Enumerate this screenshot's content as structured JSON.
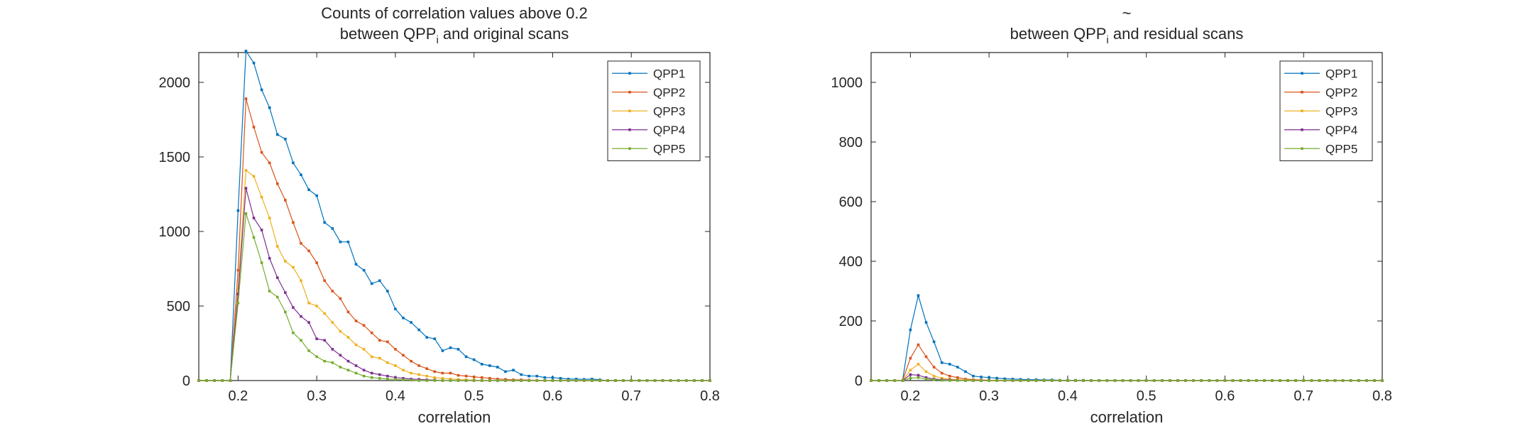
{
  "colors": {
    "QPP1": "#0072bd",
    "QPP2": "#d95319",
    "QPP3": "#edb120",
    "QPP4": "#7e2f8e",
    "QPP5": "#77ac30",
    "axis": "#262626",
    "legend_border": "#262626"
  },
  "chart_data": [
    {
      "type": "line",
      "title_line1": "Counts of correlation values above 0.2",
      "title_line2_pre": "between QPP",
      "title_line2_sub": "i",
      "title_line2_post": " and original scans",
      "xlabel": "correlation",
      "ylabel": "",
      "xlim": [
        0.15,
        0.8
      ],
      "ylim": [
        0,
        2200
      ],
      "xticks": [
        0.2,
        0.3,
        0.4,
        0.5,
        0.6,
        0.7,
        0.8
      ],
      "xtick_labels": [
        "0.2",
        "0.3",
        "0.4",
        "0.5",
        "0.6",
        "0.7",
        "0.8"
      ],
      "yticks": [
        0,
        500,
        1000,
        1500,
        2000
      ],
      "ytick_labels": [
        "0",
        "500",
        "1000",
        "1500",
        "2000"
      ],
      "grid": false,
      "legend_position": "top-right",
      "x": [
        0.15,
        0.16,
        0.17,
        0.18,
        0.19,
        0.2,
        0.21,
        0.22,
        0.23,
        0.24,
        0.25,
        0.26,
        0.27,
        0.28,
        0.29,
        0.3,
        0.31,
        0.32,
        0.33,
        0.34,
        0.35,
        0.36,
        0.37,
        0.38,
        0.39,
        0.4,
        0.41,
        0.42,
        0.43,
        0.44,
        0.45,
        0.46,
        0.47,
        0.48,
        0.49,
        0.5,
        0.51,
        0.52,
        0.53,
        0.54,
        0.55,
        0.56,
        0.57,
        0.58,
        0.59,
        0.6,
        0.61,
        0.62,
        0.63,
        0.64,
        0.65,
        0.66,
        0.67,
        0.68,
        0.69,
        0.7,
        0.71,
        0.72,
        0.73,
        0.74,
        0.75,
        0.76,
        0.77,
        0.78,
        0.79,
        0.8
      ],
      "series": [
        {
          "name": "QPP1",
          "values": [
            0,
            0,
            0,
            0,
            0,
            1140,
            2210,
            2130,
            1950,
            1830,
            1650,
            1620,
            1460,
            1380,
            1280,
            1240,
            1060,
            1020,
            930,
            930,
            780,
            740,
            650,
            670,
            600,
            480,
            420,
            390,
            340,
            290,
            280,
            200,
            220,
            210,
            160,
            140,
            110,
            100,
            90,
            60,
            70,
            40,
            30,
            30,
            20,
            20,
            15,
            10,
            10,
            8,
            10,
            5,
            0,
            0,
            0,
            0,
            0,
            0,
            0,
            0,
            0,
            0,
            0,
            0,
            0,
            0
          ]
        },
        {
          "name": "QPP2",
          "values": [
            0,
            0,
            0,
            0,
            0,
            740,
            1890,
            1700,
            1530,
            1460,
            1320,
            1210,
            1060,
            920,
            870,
            790,
            670,
            600,
            550,
            460,
            400,
            370,
            320,
            270,
            260,
            210,
            170,
            130,
            100,
            80,
            60,
            50,
            50,
            35,
            30,
            25,
            20,
            15,
            10,
            8,
            5,
            5,
            3,
            2,
            0,
            0,
            0,
            0,
            0,
            0,
            0,
            0,
            0,
            0,
            0,
            0,
            0,
            0,
            0,
            0,
            0,
            0,
            0,
            0,
            0,
            0
          ]
        },
        {
          "name": "QPP3",
          "values": [
            0,
            0,
            0,
            0,
            0,
            620,
            1410,
            1370,
            1230,
            1090,
            900,
            800,
            760,
            670,
            520,
            500,
            450,
            390,
            330,
            290,
            240,
            210,
            160,
            150,
            120,
            100,
            70,
            50,
            40,
            30,
            20,
            15,
            10,
            8,
            5,
            3,
            0,
            0,
            0,
            0,
            0,
            0,
            0,
            0,
            0,
            0,
            0,
            0,
            0,
            0,
            0,
            0,
            0,
            0,
            0,
            0,
            0,
            0,
            0,
            0,
            0,
            0,
            0,
            0,
            0,
            0
          ]
        },
        {
          "name": "QPP4",
          "values": [
            0,
            0,
            0,
            0,
            0,
            580,
            1290,
            1090,
            1010,
            820,
            690,
            590,
            490,
            430,
            390,
            280,
            270,
            210,
            170,
            130,
            100,
            70,
            50,
            40,
            30,
            20,
            15,
            10,
            8,
            5,
            3,
            0,
            0,
            0,
            0,
            0,
            0,
            0,
            0,
            0,
            0,
            0,
            0,
            0,
            0,
            0,
            0,
            0,
            0,
            0,
            0,
            0,
            0,
            0,
            0,
            0,
            0,
            0,
            0,
            0,
            0,
            0,
            0,
            0,
            0,
            0
          ]
        },
        {
          "name": "QPP5",
          "values": [
            0,
            0,
            0,
            0,
            0,
            520,
            1120,
            960,
            790,
            600,
            560,
            460,
            320,
            270,
            200,
            160,
            130,
            120,
            90,
            70,
            50,
            30,
            20,
            15,
            10,
            8,
            5,
            3,
            0,
            0,
            0,
            0,
            0,
            0,
            0,
            0,
            0,
            0,
            0,
            0,
            0,
            0,
            0,
            0,
            0,
            0,
            0,
            0,
            0,
            0,
            0,
            0,
            0,
            0,
            0,
            0,
            0,
            0,
            0,
            0,
            0,
            0,
            0,
            0,
            0,
            0
          ]
        }
      ]
    },
    {
      "type": "line",
      "title_line1": "~",
      "title_line2_pre": "between QPP",
      "title_line2_sub": "i",
      "title_line2_post": " and residual scans",
      "xlabel": "correlation",
      "ylabel": "",
      "xlim": [
        0.15,
        0.8
      ],
      "ylim": [
        0,
        1100
      ],
      "xticks": [
        0.2,
        0.3,
        0.4,
        0.5,
        0.6,
        0.7,
        0.8
      ],
      "xtick_labels": [
        "0.2",
        "0.3",
        "0.4",
        "0.5",
        "0.6",
        "0.7",
        "0.8"
      ],
      "yticks": [
        0,
        200,
        400,
        600,
        800,
        1000
      ],
      "ytick_labels": [
        "0",
        "200",
        "400",
        "600",
        "800",
        "1000"
      ],
      "grid": false,
      "legend_position": "top-right",
      "x": [
        0.15,
        0.16,
        0.17,
        0.18,
        0.19,
        0.2,
        0.21,
        0.22,
        0.23,
        0.24,
        0.25,
        0.26,
        0.27,
        0.28,
        0.29,
        0.3,
        0.31,
        0.32,
        0.33,
        0.34,
        0.35,
        0.36,
        0.37,
        0.38,
        0.39,
        0.4,
        0.41,
        0.42,
        0.43,
        0.44,
        0.45,
        0.46,
        0.47,
        0.48,
        0.49,
        0.5,
        0.51,
        0.52,
        0.53,
        0.54,
        0.55,
        0.56,
        0.57,
        0.58,
        0.59,
        0.6,
        0.61,
        0.62,
        0.63,
        0.64,
        0.65,
        0.66,
        0.67,
        0.68,
        0.69,
        0.7,
        0.71,
        0.72,
        0.73,
        0.74,
        0.75,
        0.76,
        0.77,
        0.78,
        0.79,
        0.8
      ],
      "series": [
        {
          "name": "QPP1",
          "values": [
            0,
            0,
            0,
            0,
            0,
            170,
            285,
            195,
            130,
            60,
            55,
            45,
            30,
            15,
            12,
            10,
            8,
            6,
            5,
            4,
            3,
            3,
            2,
            2,
            1,
            1,
            1,
            1,
            0,
            0,
            0,
            0,
            0,
            0,
            0,
            0,
            0,
            0,
            0,
            0,
            0,
            0,
            0,
            0,
            0,
            0,
            0,
            0,
            0,
            0,
            0,
            0,
            0,
            0,
            0,
            0,
            0,
            0,
            0,
            0,
            0,
            0,
            0,
            0,
            0,
            0
          ]
        },
        {
          "name": "QPP2",
          "values": [
            0,
            0,
            0,
            0,
            0,
            75,
            120,
            80,
            45,
            25,
            15,
            10,
            5,
            3,
            2,
            1,
            1,
            0,
            0,
            0,
            0,
            0,
            0,
            0,
            0,
            0,
            0,
            0,
            0,
            0,
            0,
            0,
            0,
            0,
            0,
            0,
            0,
            0,
            0,
            0,
            0,
            0,
            0,
            0,
            0,
            0,
            0,
            0,
            0,
            0,
            0,
            0,
            0,
            0,
            0,
            0,
            0,
            0,
            0,
            0,
            0,
            0,
            0,
            0,
            0,
            0
          ]
        },
        {
          "name": "QPP3",
          "values": [
            0,
            0,
            0,
            0,
            0,
            35,
            55,
            30,
            15,
            8,
            5,
            3,
            2,
            1,
            0,
            0,
            0,
            0,
            0,
            0,
            0,
            0,
            0,
            0,
            0,
            0,
            0,
            0,
            0,
            0,
            0,
            0,
            0,
            0,
            0,
            0,
            0,
            0,
            0,
            0,
            0,
            0,
            0,
            0,
            0,
            0,
            0,
            0,
            0,
            0,
            0,
            0,
            0,
            0,
            0,
            0,
            0,
            0,
            0,
            0,
            0,
            0,
            0,
            0,
            0,
            0
          ]
        },
        {
          "name": "QPP4",
          "values": [
            0,
            0,
            0,
            0,
            0,
            20,
            18,
            10,
            5,
            3,
            2,
            1,
            0,
            0,
            0,
            0,
            0,
            0,
            0,
            0,
            0,
            0,
            0,
            0,
            0,
            0,
            0,
            0,
            0,
            0,
            0,
            0,
            0,
            0,
            0,
            0,
            0,
            0,
            0,
            0,
            0,
            0,
            0,
            0,
            0,
            0,
            0,
            0,
            0,
            0,
            0,
            0,
            0,
            0,
            0,
            0,
            0,
            0,
            0,
            0,
            0,
            0,
            0,
            0,
            0,
            0
          ]
        },
        {
          "name": "QPP5",
          "values": [
            0,
            0,
            0,
            0,
            0,
            8,
            10,
            5,
            3,
            1,
            0,
            0,
            0,
            0,
            0,
            0,
            0,
            0,
            0,
            0,
            0,
            0,
            0,
            0,
            0,
            0,
            0,
            0,
            0,
            0,
            0,
            0,
            0,
            0,
            0,
            0,
            0,
            0,
            0,
            0,
            0,
            0,
            0,
            0,
            0,
            0,
            0,
            0,
            0,
            0,
            0,
            0,
            0,
            0,
            0,
            0,
            0,
            0,
            0,
            0,
            0,
            0,
            0,
            0,
            0,
            0
          ]
        }
      ]
    }
  ]
}
